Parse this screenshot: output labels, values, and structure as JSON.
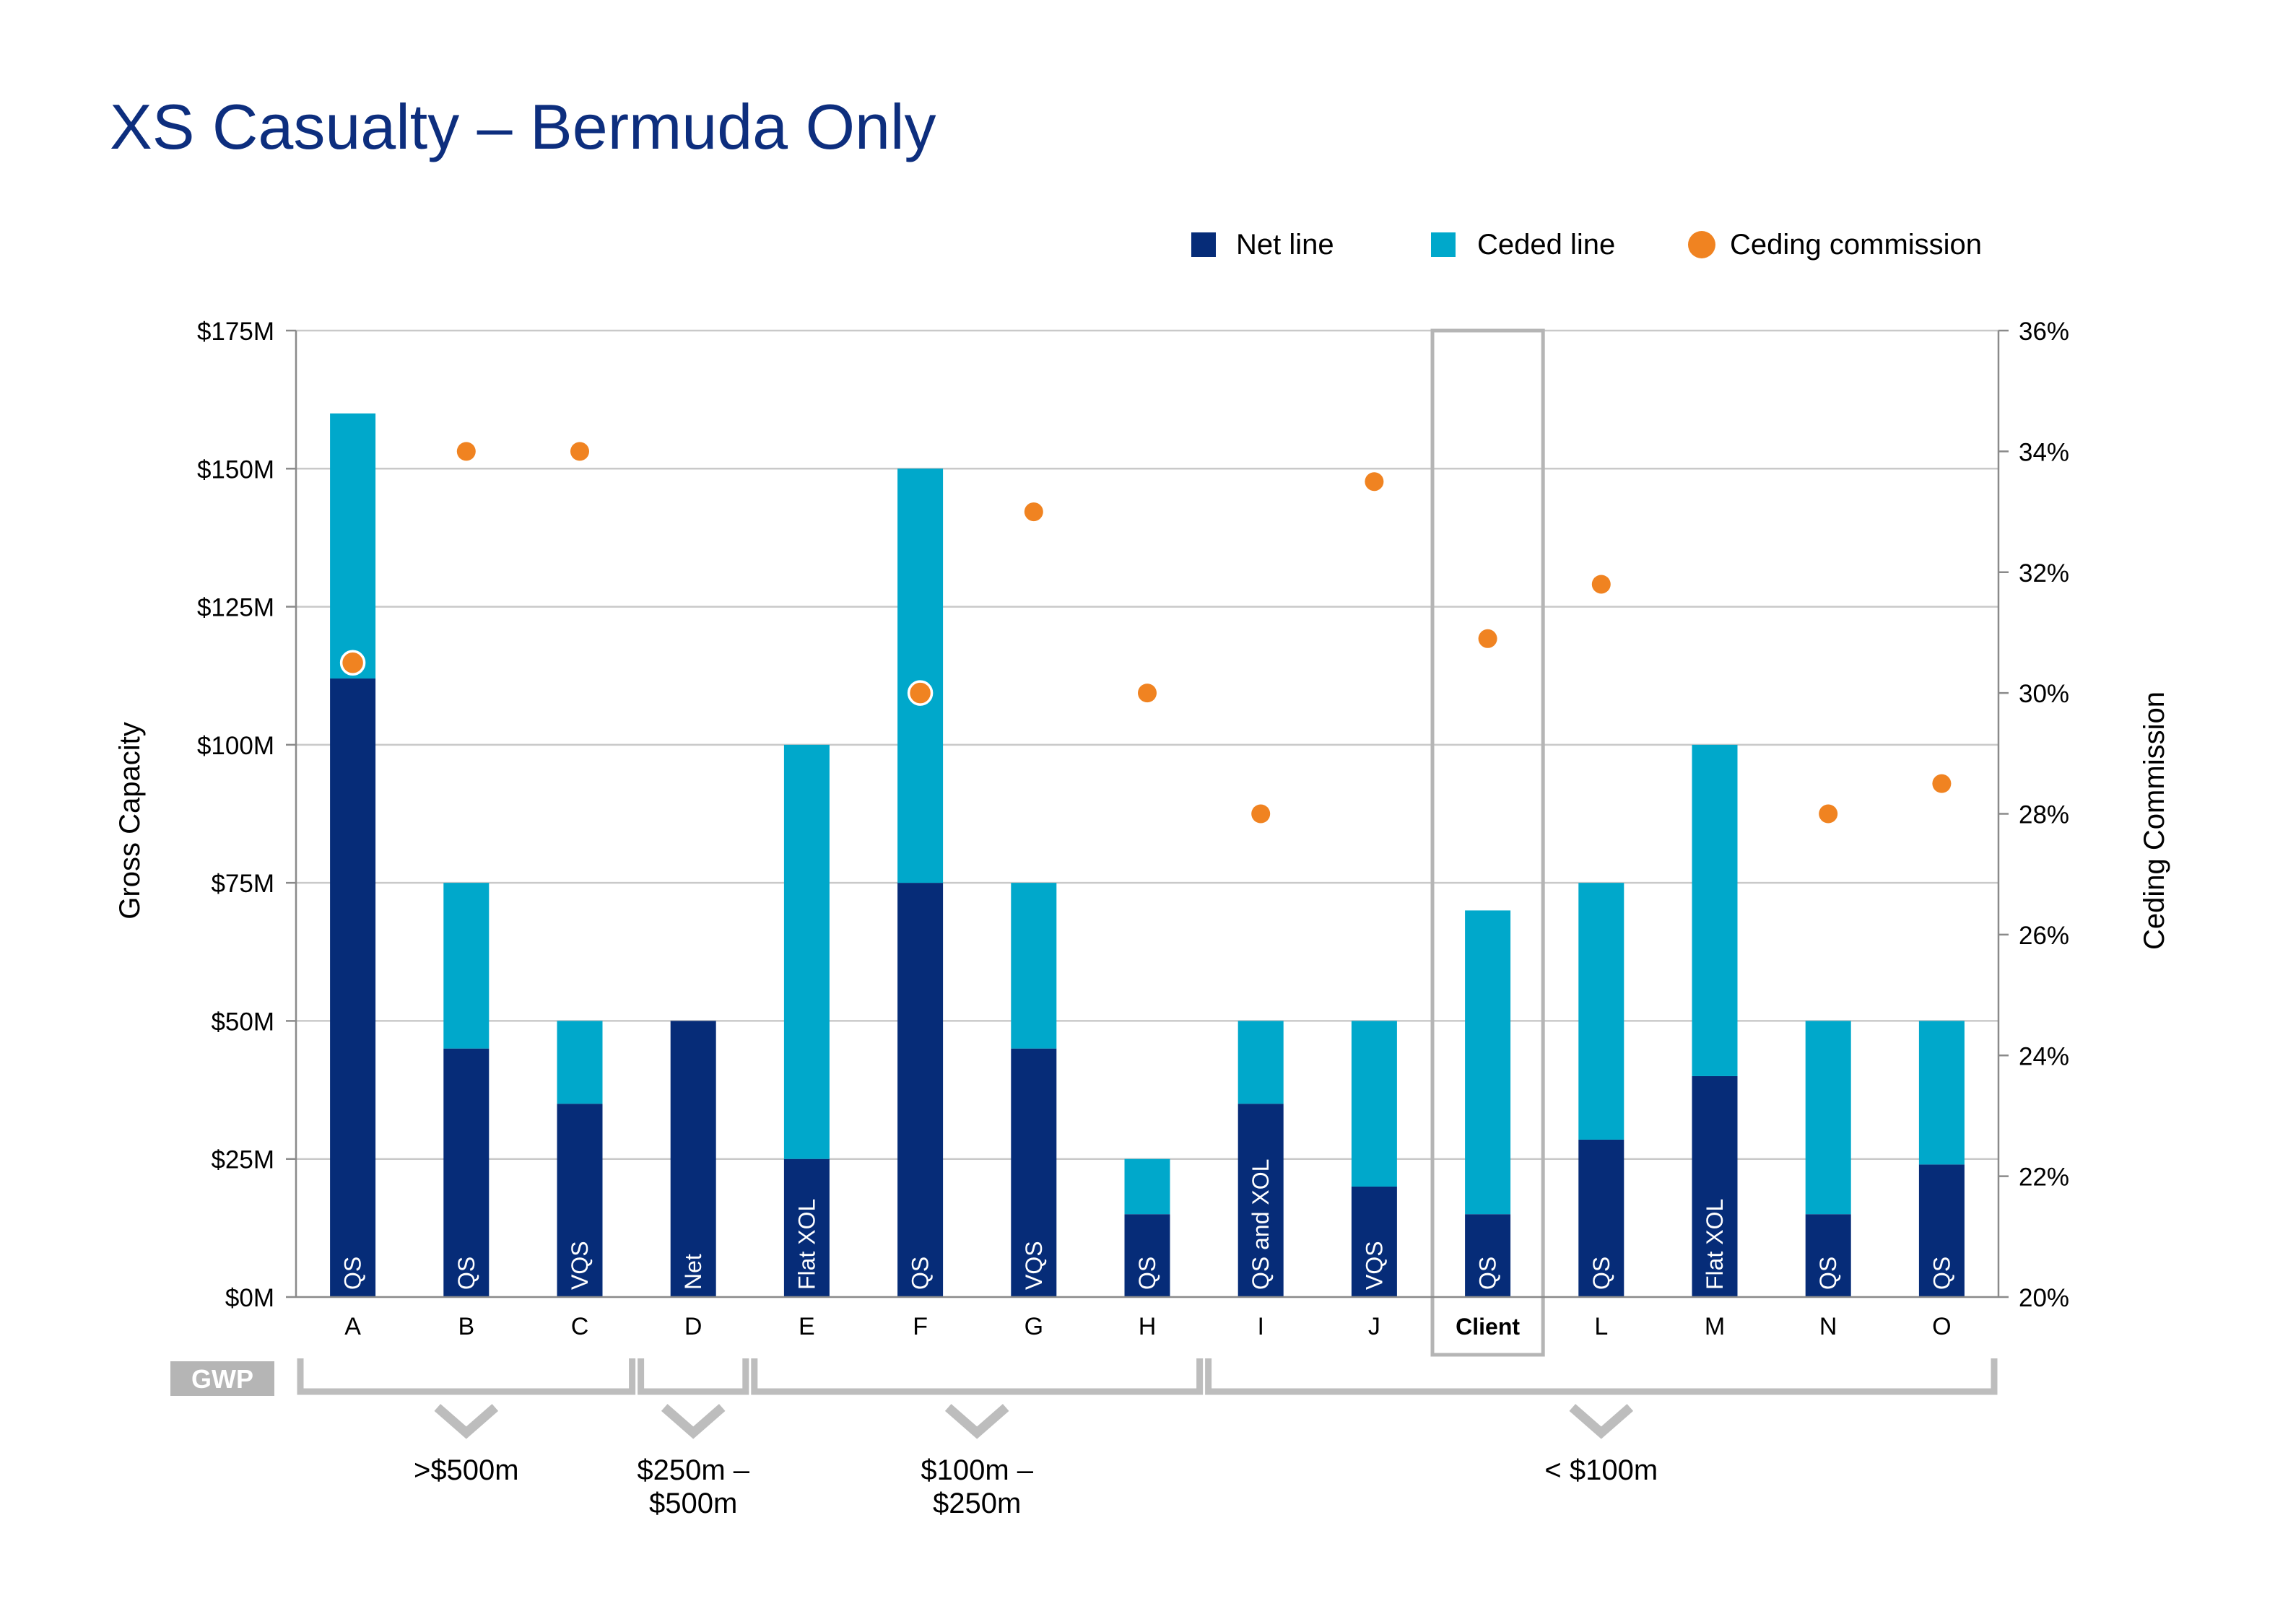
{
  "title": "XS Casualty – Bermuda Only",
  "colors": {
    "net_line": "#062c78",
    "ceded_line": "#00a8cb",
    "ceding_commission": "#f08321",
    "title": "#0d2e7e",
    "grid": "#c9c9c9",
    "bracket": "#bdbdbd"
  },
  "legend": {
    "position": "top-right",
    "net_line": "Net line",
    "ceded_line": "Ceded line",
    "ceding_commission": "Ceding commission"
  },
  "chart_data": {
    "type": "bar",
    "stacked": true,
    "categories": [
      "A",
      "B",
      "C",
      "D",
      "E",
      "F",
      "G",
      "H",
      "I",
      "J",
      "Client",
      "L",
      "M",
      "N",
      "O"
    ],
    "highlighted_category": "Client",
    "bar_labels": [
      "QS",
      "QS",
      "VQS",
      "Net",
      "Flat XOL",
      "QS",
      "VQS",
      "QS",
      "QS and XOL",
      "VQS",
      "QS",
      "QS",
      "Flat XOL",
      "QS",
      "QS"
    ],
    "series": [
      {
        "name": "Net line",
        "axis": "left",
        "kind": "bar",
        "values": [
          112,
          45,
          35,
          50,
          25,
          75,
          45,
          15,
          35,
          20,
          15,
          28.5,
          40,
          15,
          24
        ]
      },
      {
        "name": "Ceded line",
        "axis": "left",
        "kind": "bar",
        "values": [
          48,
          30,
          15,
          0,
          75,
          75,
          30,
          10,
          15,
          30,
          55,
          46.5,
          60,
          35,
          26
        ]
      },
      {
        "name": "Ceding commission",
        "axis": "right",
        "kind": "scatter",
        "values": [
          30.5,
          34,
          34,
          null,
          null,
          30,
          33,
          30,
          28,
          33.5,
          30.9,
          31.8,
          null,
          28,
          28.5
        ]
      }
    ],
    "ylabel": "Gross Capacity",
    "y2label": "Ceding Commission",
    "ylim": [
      0,
      175
    ],
    "y_ticks": [
      {
        "v": 0,
        "label": "$0M"
      },
      {
        "v": 25,
        "label": "$25M"
      },
      {
        "v": 50,
        "label": "$50M"
      },
      {
        "v": 75,
        "label": "$75M"
      },
      {
        "v": 100,
        "label": "$100M"
      },
      {
        "v": 125,
        "label": "$125M"
      },
      {
        "v": 150,
        "label": "$150M"
      },
      {
        "v": 175,
        "label": "$175M"
      }
    ],
    "y2lim": [
      20,
      36
    ],
    "y2_ticks": [
      {
        "v": 20,
        "label": "20%"
      },
      {
        "v": 22,
        "label": "22%"
      },
      {
        "v": 24,
        "label": "24%"
      },
      {
        "v": 26,
        "label": "26%"
      },
      {
        "v": 28,
        "label": "28%"
      },
      {
        "v": 30,
        "label": "30%"
      },
      {
        "v": 32,
        "label": "32%"
      },
      {
        "v": 34,
        "label": "34%"
      },
      {
        "v": 36,
        "label": "36%"
      }
    ],
    "grid": true
  },
  "gwp": {
    "label": "GWP",
    "groups": [
      {
        "label_lines": [
          ">$500m"
        ],
        "from": 0,
        "to": 2
      },
      {
        "label_lines": [
          "$250m –",
          "$500m"
        ],
        "from": 3,
        "to": 3
      },
      {
        "label_lines": [
          "$100m –",
          "$250m"
        ],
        "from": 4,
        "to": 7
      },
      {
        "label_lines": [
          "< $100m"
        ],
        "from": 8,
        "to": 14
      }
    ]
  }
}
